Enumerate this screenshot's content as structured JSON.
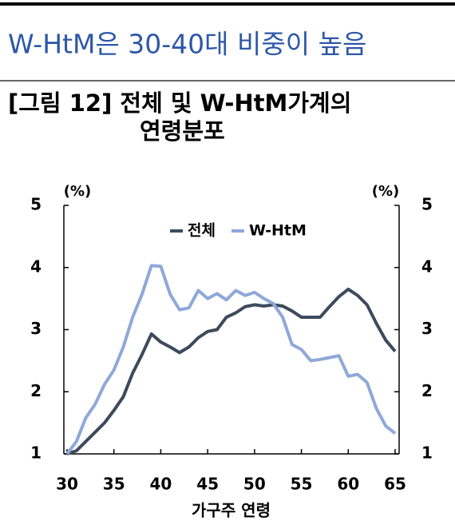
{
  "header": {
    "title": "W-HtM은 30-40대 비중이 높음",
    "figure_title": [
      "[그림 12] 전체 및 W-HtM가계의",
      "연령분포"
    ]
  },
  "chart_data": {
    "type": "line",
    "y_unit": "(%)",
    "y2_unit": "(%)",
    "xlabel": "가구주 연령",
    "x": [
      30,
      31,
      32,
      33,
      34,
      35,
      36,
      37,
      38,
      39,
      40,
      41,
      42,
      43,
      44,
      45,
      46,
      47,
      48,
      49,
      50,
      51,
      52,
      53,
      54,
      55,
      56,
      57,
      58,
      59,
      60,
      61,
      62,
      63,
      64,
      65
    ],
    "series": [
      {
        "name": "전체",
        "color": "#3d4a5c",
        "values": [
          1.0,
          1.05,
          1.2,
          1.35,
          1.5,
          1.7,
          1.92,
          2.3,
          2.6,
          2.93,
          2.8,
          2.72,
          2.63,
          2.72,
          2.87,
          2.97,
          3.0,
          3.2,
          3.27,
          3.37,
          3.4,
          3.38,
          3.4,
          3.38,
          3.3,
          3.2,
          3.2,
          3.2,
          3.37,
          3.53,
          3.65,
          3.55,
          3.4,
          3.1,
          2.83,
          2.65
        ]
      },
      {
        "name": "W-HtM",
        "color": "#8fa8d8",
        "values": [
          1.0,
          1.2,
          1.58,
          1.8,
          2.12,
          2.35,
          2.72,
          3.2,
          3.57,
          4.03,
          4.02,
          3.57,
          3.32,
          3.35,
          3.63,
          3.5,
          3.58,
          3.48,
          3.63,
          3.55,
          3.6,
          3.5,
          3.42,
          3.2,
          2.76,
          2.68,
          2.5,
          2.52,
          2.55,
          2.58,
          2.25,
          2.28,
          2.15,
          1.73,
          1.45,
          1.33
        ]
      }
    ],
    "xlim": [
      30,
      65
    ],
    "xticks": [
      30,
      35,
      40,
      45,
      50,
      55,
      60,
      65
    ],
    "ylim": [
      1,
      5
    ],
    "yticks": [
      1,
      2,
      3,
      4,
      5
    ],
    "y2lim": [
      1,
      5
    ],
    "y2ticks": [
      1,
      2,
      3,
      4,
      5
    ],
    "legend": "top-center"
  }
}
